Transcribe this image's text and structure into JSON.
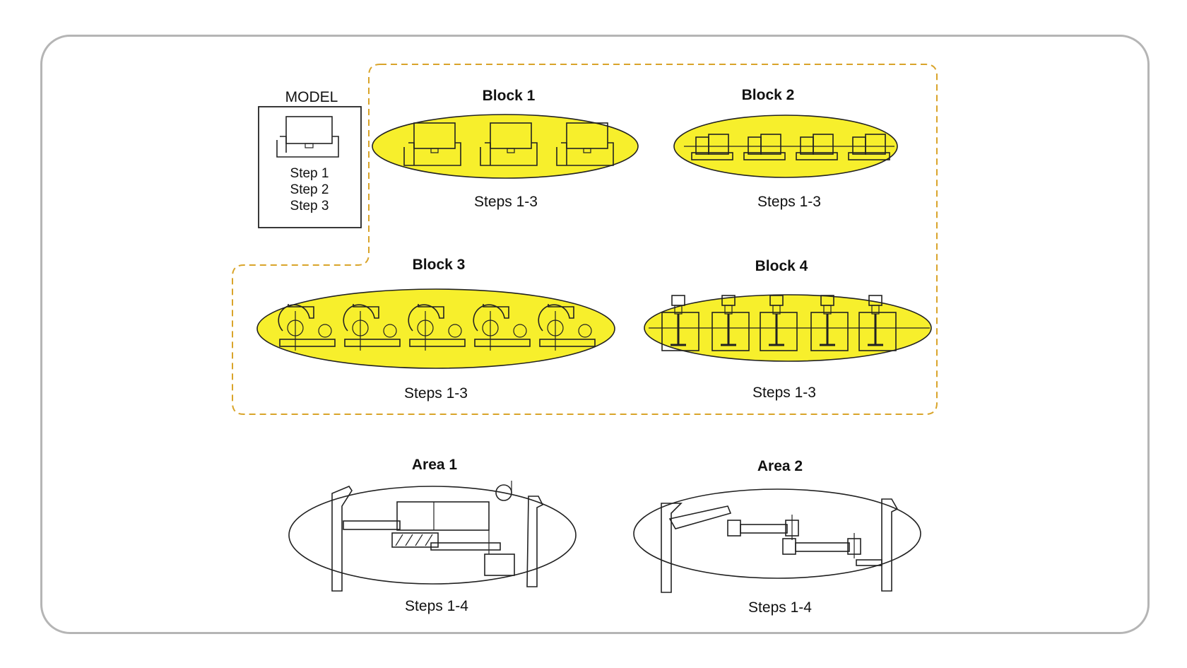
{
  "colors": {
    "highlight": "#f7ef2c",
    "dashed_outline": "#d9a42a",
    "frame": "#b5b5b5",
    "ink": "#222222"
  },
  "model": {
    "title": "MODEL",
    "steps": [
      "Step 1",
      "Step 2",
      "Step 3"
    ]
  },
  "blocks": [
    {
      "title": "Block 1",
      "steps": "Steps 1-3"
    },
    {
      "title": "Block 2",
      "steps": "Steps 1-3"
    },
    {
      "title": "Block 3",
      "steps": "Steps 1-3"
    },
    {
      "title": "Block 4",
      "steps": "Steps 1-3"
    }
  ],
  "areas": [
    {
      "title": "Area 1",
      "steps": "Steps 1-4"
    },
    {
      "title": "Area 2",
      "steps": "Steps 1-4"
    }
  ]
}
